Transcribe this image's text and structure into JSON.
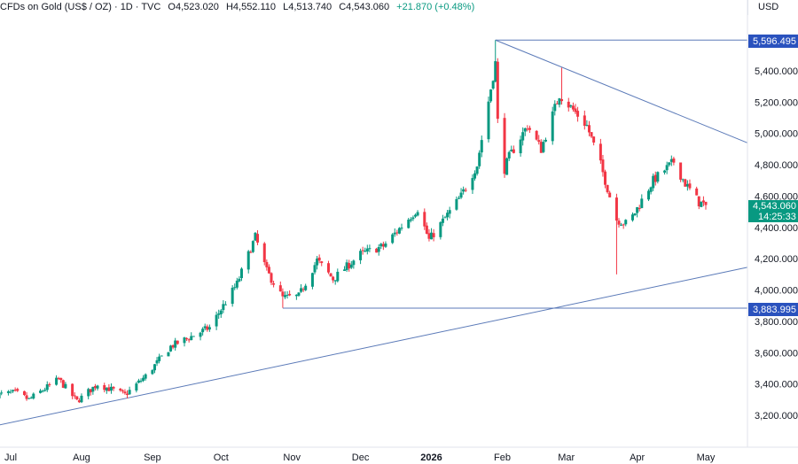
{
  "header": {
    "title": "CFDs on Gold (US$ / OZ) · 1D · TVC",
    "open": "O4,523.020",
    "high": "H4,552.110",
    "low": "L4,513.740",
    "close": "C4,543.060",
    "change": "+21.870 (+0.48%)"
  },
  "currency": "USD",
  "price_tags": {
    "upper_line": "5,596.495",
    "lower_line": "3,883.995",
    "last_price": "4,543.060",
    "countdown": "14:25:33"
  },
  "colors": {
    "up": "#089981",
    "down": "#f23645",
    "line": "#5b7ab8",
    "tag_line": "#2a52be",
    "last_price_tag": "#089981"
  },
  "chart_data": {
    "type": "candlestick",
    "ylim": [
      3140,
      5680
    ],
    "y_ticks": [
      3200,
      3400,
      3600,
      3800,
      4000,
      4200,
      4400,
      4600,
      4800,
      5000,
      5200,
      5400
    ],
    "y_tick_labels": [
      "3,200.000",
      "3,400.000",
      "3,600.000",
      "3,800.000",
      "4,000.000",
      "4,200.000",
      "4,400.000",
      "4,600.000",
      "4,800.000",
      "5,000.000",
      "5,200.000",
      "5,400.000"
    ],
    "x_labels": [
      {
        "label": "Jul",
        "date": "2025-07-01"
      },
      {
        "label": "Aug",
        "date": "2025-08-01"
      },
      {
        "label": "Sep",
        "date": "2025-09-01"
      },
      {
        "label": "Oct",
        "date": "2025-10-01"
      },
      {
        "label": "Nov",
        "date": "2025-11-01"
      },
      {
        "label": "Dec",
        "date": "2025-12-01"
      },
      {
        "label": "2026",
        "date": "2026-01-01",
        "bold": true
      },
      {
        "label": "Feb",
        "date": "2026-02-01"
      },
      {
        "label": "Mar",
        "date": "2026-03-01"
      },
      {
        "label": "Apr",
        "date": "2026-04-01"
      },
      {
        "label": "May",
        "date": "2026-05-01"
      }
    ],
    "anchors": [
      [
        "2025-06-25",
        3330
      ],
      [
        "2025-07-03",
        3345
      ],
      [
        "2025-07-09",
        3300
      ],
      [
        "2025-07-22",
        3430
      ],
      [
        "2025-07-30",
        3290
      ],
      [
        "2025-08-08",
        3400
      ],
      [
        "2025-08-20",
        3330
      ],
      [
        "2025-08-29",
        3450
      ],
      [
        "2025-09-09",
        3640
      ],
      [
        "2025-09-26",
        3760
      ],
      [
        "2025-10-08",
        4040
      ],
      [
        "2025-10-16",
        4340
      ],
      [
        "2025-10-21",
        4120
      ],
      [
        "2025-10-28",
        3950
      ],
      [
        "2025-11-04",
        3960
      ],
      [
        "2025-11-12",
        4190
      ],
      [
        "2025-11-19",
        4070
      ],
      [
        "2025-12-01",
        4230
      ],
      [
        "2025-12-11",
        4280
      ],
      [
        "2025-12-26",
        4520
      ],
      [
        "2025-12-31",
        4320
      ],
      [
        "2026-01-14",
        4600
      ],
      [
        "2026-01-21",
        4800
      ],
      [
        "2026-01-29",
        5450
      ],
      [
        "2026-01-31",
        4700
      ],
      [
        "2026-02-04",
        4850
      ],
      [
        "2026-02-12",
        5050
      ],
      [
        "2026-02-18",
        4900
      ],
      [
        "2026-02-26",
        5250
      ],
      [
        "2026-03-04",
        5150
      ],
      [
        "2026-03-10",
        5050
      ],
      [
        "2026-03-16",
        4800
      ],
      [
        "2026-03-23",
        4450
      ],
      [
        "2026-03-28",
        4420
      ],
      [
        "2026-04-08",
        4700
      ],
      [
        "2026-04-17",
        4820
      ],
      [
        "2026-04-22",
        4680
      ],
      [
        "2026-04-28",
        4560
      ],
      [
        "2026-05-01",
        4543
      ]
    ],
    "spikes": [
      {
        "date": "2026-01-29",
        "high": 5596
      },
      {
        "date": "2026-02-01",
        "low": 4400
      },
      {
        "date": "2026-02-27",
        "high": 5420
      },
      {
        "date": "2026-03-23",
        "low": 4100
      },
      {
        "date": "2025-10-28",
        "low": 3886
      }
    ],
    "lines": [
      {
        "name": "upper-trendline",
        "from": [
          "2026-01-29",
          5596.495
        ],
        "to": [
          "2026-05-31",
          4940
        ]
      },
      {
        "name": "upper-horizontal",
        "from": [
          "2026-01-29",
          5596.495
        ],
        "to": [
          "2026-05-31",
          5596.495
        ]
      },
      {
        "name": "lower-horizontal",
        "from": [
          "2025-10-28",
          3883.995
        ],
        "to": [
          "2026-05-31",
          3883.995
        ]
      },
      {
        "name": "rising-trendline",
        "from": [
          "2025-06-25",
          3135
        ],
        "to": [
          "2026-05-31",
          4145
        ]
      }
    ]
  }
}
